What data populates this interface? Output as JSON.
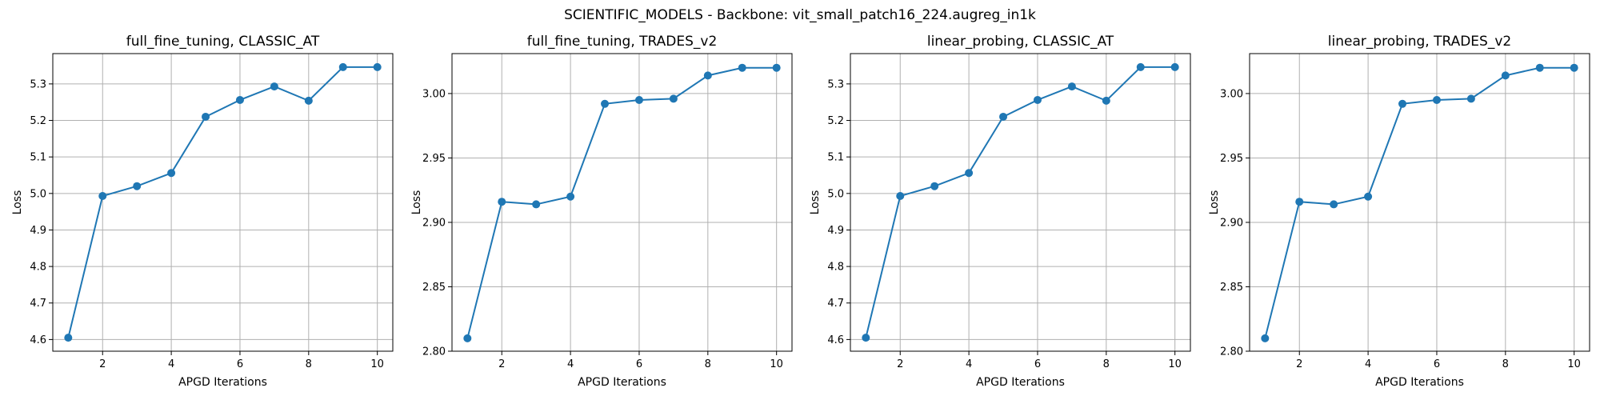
{
  "figure": {
    "title": "SCIENTIFIC_MODELS - Backbone: vit_small_patch16_224.augreg_in1k"
  },
  "colors": {
    "series": "#1f77b4",
    "grid": "#b0b0b0",
    "axes": "#000000",
    "background": "#ffffff"
  },
  "chart_data": [
    {
      "type": "line",
      "title": "full_fine_tuning, CLASSIC_AT",
      "xlabel": "APGD Iterations",
      "ylabel": "Loss",
      "x": [
        1,
        2,
        3,
        4,
        5,
        6,
        7,
        8,
        9,
        10
      ],
      "series": [
        {
          "values": [
            4.605,
            4.993,
            5.02,
            5.056,
            5.21,
            5.256,
            5.293,
            5.254,
            5.346,
            5.346
          ]
        }
      ],
      "xlim": [
        0.55,
        10.45
      ],
      "ylim": [
        4.568,
        5.383
      ],
      "xticks": [
        2,
        4,
        6,
        8,
        10
      ],
      "xtick_labels": [
        "2",
        "4",
        "6",
        "8",
        "10"
      ],
      "yticks": [
        4.6,
        4.7,
        4.8,
        4.9,
        5.0,
        5.1,
        5.2,
        5.3
      ],
      "ytick_labels": [
        "4.6",
        "4.7",
        "4.8",
        "4.9",
        "5.0",
        "5.1",
        "5.2",
        "5.3"
      ],
      "grid": true,
      "marker": "circle"
    },
    {
      "type": "line",
      "title": "full_fine_tuning, TRADES_v2",
      "xlabel": "APGD Iterations",
      "ylabel": "Loss",
      "x": [
        1,
        2,
        3,
        4,
        5,
        6,
        7,
        8,
        9,
        10
      ],
      "series": [
        {
          "values": [
            2.81,
            2.916,
            2.914,
            2.92,
            2.992,
            2.995,
            2.996,
            3.014,
            3.02,
            3.02
          ]
        }
      ],
      "xlim": [
        0.55,
        10.45
      ],
      "ylim": [
        2.8,
        3.031
      ],
      "xticks": [
        2,
        4,
        6,
        8,
        10
      ],
      "xtick_labels": [
        "2",
        "4",
        "6",
        "8",
        "10"
      ],
      "yticks": [
        2.8,
        2.85,
        2.9,
        2.95,
        3.0
      ],
      "ytick_labels": [
        "2.80",
        "2.85",
        "2.90",
        "2.95",
        "3.00"
      ],
      "grid": true,
      "marker": "circle"
    },
    {
      "type": "line",
      "title": "linear_probing, CLASSIC_AT",
      "xlabel": "APGD Iterations",
      "ylabel": "Loss",
      "x": [
        1,
        2,
        3,
        4,
        5,
        6,
        7,
        8,
        9,
        10
      ],
      "series": [
        {
          "values": [
            4.605,
            4.993,
            5.02,
            5.056,
            5.21,
            5.256,
            5.293,
            5.254,
            5.346,
            5.346
          ]
        }
      ],
      "xlim": [
        0.55,
        10.45
      ],
      "ylim": [
        4.568,
        5.383
      ],
      "xticks": [
        2,
        4,
        6,
        8,
        10
      ],
      "xtick_labels": [
        "2",
        "4",
        "6",
        "8",
        "10"
      ],
      "yticks": [
        4.6,
        4.7,
        4.8,
        4.9,
        5.0,
        5.1,
        5.2,
        5.3
      ],
      "ytick_labels": [
        "4.6",
        "4.7",
        "4.8",
        "4.9",
        "5.0",
        "5.1",
        "5.2",
        "5.3"
      ],
      "grid": true,
      "marker": "circle"
    },
    {
      "type": "line",
      "title": "linear_probing, TRADES_v2",
      "xlabel": "APGD Iterations",
      "ylabel": "Loss",
      "x": [
        1,
        2,
        3,
        4,
        5,
        6,
        7,
        8,
        9,
        10
      ],
      "series": [
        {
          "values": [
            2.81,
            2.916,
            2.914,
            2.92,
            2.992,
            2.995,
            2.996,
            3.014,
            3.02,
            3.02
          ]
        }
      ],
      "xlim": [
        0.55,
        10.45
      ],
      "ylim": [
        2.8,
        3.031
      ],
      "xticks": [
        2,
        4,
        6,
        8,
        10
      ],
      "xtick_labels": [
        "2",
        "4",
        "6",
        "8",
        "10"
      ],
      "yticks": [
        2.8,
        2.85,
        2.9,
        2.95,
        3.0
      ],
      "ytick_labels": [
        "2.80",
        "2.85",
        "2.90",
        "2.95",
        "3.00"
      ],
      "grid": true,
      "marker": "circle"
    }
  ]
}
